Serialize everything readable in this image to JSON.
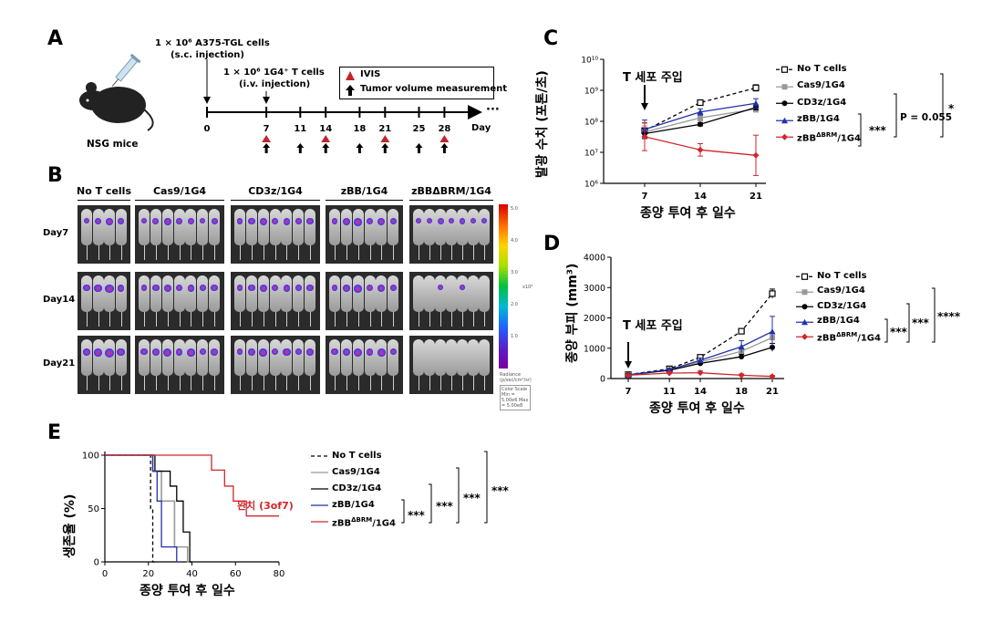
{
  "panel_A": {
    "label": "A",
    "mouse_caption": "NSG mice",
    "injection1_line1": "1 × 10⁶ A375-TGL cells",
    "injection1_line2": "(s.c. injection)",
    "injection2_line1": "1 × 10⁶ 1G4⁺ T cells",
    "injection2_line2": "(i.v. injection)",
    "legend_ivis": "IVIS",
    "legend_tumor": "Tumor volume measurement",
    "day_axis_label": "Day",
    "ellipsis": "···",
    "days": [
      "0",
      "7",
      "11",
      "14",
      "18",
      "21",
      "25",
      "28"
    ],
    "ivis_days": [
      7,
      14,
      21,
      28
    ],
    "tumor_days": [
      7,
      11,
      14,
      18,
      21,
      25,
      28
    ],
    "ivis_color": "#c0272d"
  },
  "panel_B": {
    "label": "B",
    "groups": [
      "No T cells",
      "Cas9/1G4",
      "CD3z/1G4",
      "zBB/1G4",
      "zBBΔBRM/1G4"
    ],
    "rows": [
      "Day7",
      "Day14",
      "Day21"
    ],
    "colorbar_ticks": [
      "5.0",
      "4.0",
      "3.0",
      "2.0",
      "1.0"
    ],
    "colorbar_unit": "x10⁸",
    "colorbar_title": "Radiance (p/sec/cm²/sr)",
    "color_scale_text": "Color Scale Min = 5.00e6 Max = 5.00e8"
  },
  "panel_C": {
    "label": "C",
    "inject_note": "T 세포 주입",
    "ylabel": "발광 수치 (포톤/초)",
    "xlabel": "종양 투여 후 일수",
    "yticks": [
      "10⁶",
      "10⁷",
      "10⁸",
      "10⁹",
      "10¹⁰"
    ],
    "stat_1": "***",
    "stat_2": "P = 0.055",
    "stat_3": "*"
  },
  "panel_D": {
    "label": "D",
    "inject_note": "T 세포 주입",
    "ylabel": "종양 부피 (mm³)",
    "xlabel": "종양 투여 후 일수",
    "stat_1": "***",
    "stat_2": "***",
    "stat_3": "****"
  },
  "panel_E": {
    "label": "E",
    "ylabel": "생존율 (%)",
    "xlabel": "종양 투여 후 일수",
    "cure_note": "완치 (3of7)",
    "stat_1": "***",
    "stat_2": "***",
    "stat_3": "***",
    "stat_4": "***"
  },
  "series_legend": [
    {
      "name": "No T cells",
      "color": "#000000"
    },
    {
      "name": "Cas9/1G4",
      "color": "#999999"
    },
    {
      "name": "CD3z/1G4",
      "color": "#000000"
    },
    {
      "name": "zBB/1G4",
      "color": "#2231a8"
    },
    {
      "name": "zBBΔBRM/1G4",
      "color": "#d0262b"
    }
  ],
  "chart_data": [
    {
      "panel": "C",
      "type": "line",
      "x": [
        7,
        14,
        21
      ],
      "xlabel": "종양 투여 후 일수",
      "ylabel": "발광 수치 (포톤/초)",
      "yscale": "log",
      "ylim": [
        1000000,
        10000000000
      ],
      "series": [
        {
          "name": "No T cells",
          "values": [
            50000000,
            400000000,
            1200000000
          ],
          "err": [
            0.25,
            0.08,
            0.1
          ]
        },
        {
          "name": "Cas9/1G4",
          "values": [
            45000000,
            130000000,
            250000000
          ],
          "err": [
            0.2,
            0.1,
            0.1
          ]
        },
        {
          "name": "CD3z/1G4",
          "values": [
            40000000,
            80000000,
            280000000
          ],
          "err": [
            0.15,
            0.05,
            0.08
          ]
        },
        {
          "name": "zBB/1G4",
          "values": [
            55000000,
            200000000,
            380000000
          ],
          "err": [
            0.3,
            0.1,
            0.15
          ]
        },
        {
          "name": "zBBΔBRM/1G4",
          "values": [
            32000000,
            12000000,
            8000000
          ],
          "err": [
            0.45,
            0.2,
            0.65
          ]
        }
      ]
    },
    {
      "panel": "D",
      "type": "line",
      "x": [
        7,
        11,
        14,
        18,
        21
      ],
      "xlabel": "종양 투여 후 일수",
      "ylabel": "종양 부피 (mm³)",
      "ylim": [
        0,
        4000
      ],
      "yticks": [
        0,
        1000,
        2000,
        3000,
        4000
      ],
      "series": [
        {
          "name": "No T cells",
          "values": [
            130,
            320,
            700,
            1560,
            2800
          ],
          "err": [
            30,
            40,
            80,
            60,
            150
          ]
        },
        {
          "name": "Cas9/1G4",
          "values": [
            125,
            280,
            550,
            900,
            1350
          ],
          "err": [
            20,
            40,
            60,
            100,
            150
          ]
        },
        {
          "name": "CD3z/1G4",
          "values": [
            120,
            270,
            500,
            720,
            1030
          ],
          "err": [
            20,
            30,
            50,
            80,
            130
          ]
        },
        {
          "name": "zBB/1G4",
          "values": [
            125,
            290,
            600,
            1050,
            1550
          ],
          "err": [
            20,
            40,
            80,
            200,
            500
          ]
        },
        {
          "name": "zBBΔBRM/1G4",
          "values": [
            110,
            180,
            190,
            110,
            70
          ],
          "err": [
            20,
            30,
            60,
            40,
            30
          ]
        }
      ]
    },
    {
      "panel": "E",
      "type": "line",
      "subtype": "survival-step",
      "xlabel": "종양 투여 후 일수",
      "ylabel": "생존율 (%)",
      "xlim": [
        0,
        80
      ],
      "ylim": [
        0,
        100
      ],
      "xticks": [
        0,
        20,
        40,
        60,
        80
      ],
      "yticks": [
        0,
        50,
        100
      ],
      "series": [
        {
          "name": "No T cells",
          "x": [
            0,
            21,
            21,
            22,
            22,
            23
          ],
          "y": [
            100,
            100,
            50,
            50,
            0,
            0
          ]
        },
        {
          "name": "Cas9/1G4",
          "x": [
            0,
            22,
            22,
            26,
            26,
            32,
            32,
            38,
            38,
            40
          ],
          "y": [
            100,
            100,
            85,
            85,
            57,
            57,
            14,
            14,
            0,
            0
          ]
        },
        {
          "name": "CD3z/1G4",
          "x": [
            0,
            23,
            23,
            30,
            30,
            33,
            33,
            36,
            36,
            39,
            39,
            40
          ],
          "y": [
            100,
            100,
            85,
            85,
            71,
            71,
            57,
            57,
            28,
            28,
            0,
            0
          ]
        },
        {
          "name": "zBB/1G4",
          "x": [
            0,
            22,
            22,
            24,
            24,
            26,
            26,
            28,
            28,
            33,
            33,
            35
          ],
          "y": [
            100,
            100,
            85,
            85,
            57,
            57,
            14,
            14,
            14,
            14,
            0,
            0
          ]
        },
        {
          "name": "zBBΔBRM/1G4",
          "x": [
            0,
            49,
            49,
            55,
            55,
            59,
            59,
            65,
            65,
            80
          ],
          "y": [
            100,
            100,
            86,
            86,
            71,
            71,
            57,
            57,
            43,
            43
          ]
        }
      ]
    }
  ]
}
